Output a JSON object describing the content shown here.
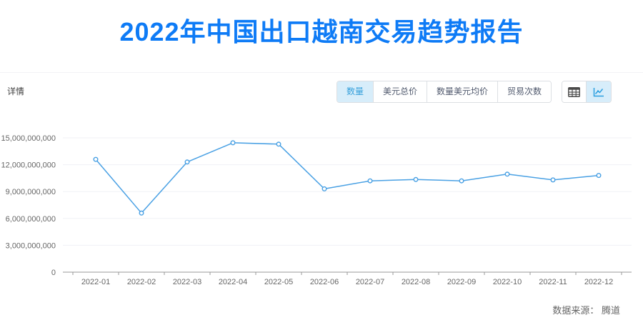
{
  "header": {
    "title": "2022年中国出口越南交易趋势报告"
  },
  "toolbar": {
    "section_label": "详情",
    "tabs": [
      {
        "name": "quantity",
        "label": "数量",
        "active": true
      },
      {
        "name": "usd-total",
        "label": "美元总价",
        "active": false
      },
      {
        "name": "quantity-usd-avg",
        "label": "数量美元均价",
        "active": false
      },
      {
        "name": "trade-count",
        "label": "贸易次数",
        "active": false
      }
    ],
    "view_toggles": [
      {
        "name": "table-view",
        "icon": "table-icon",
        "active": false
      },
      {
        "name": "chart-view",
        "icon": "line-chart-icon",
        "active": true
      }
    ]
  },
  "footer": {
    "source_label": "数据来源： 腾道"
  },
  "colors": {
    "title_blue": "#0e7bf6",
    "line_blue": "#4aa1e4",
    "active_tab_bg": "#d7edfa",
    "active_tab_text": "#36a0db",
    "grid_line": "#f0f1f6",
    "axis_line": "#999999",
    "tick_label": "#666666"
  },
  "chart_data": {
    "type": "line",
    "title": "",
    "xlabel": "",
    "ylabel": "",
    "categories": [
      "2022-01",
      "2022-02",
      "2022-03",
      "2022-04",
      "2022-05",
      "2022-06",
      "2022-07",
      "2022-08",
      "2022-09",
      "2022-10",
      "2022-11",
      "2022-12"
    ],
    "series": [
      {
        "name": "数量",
        "values": [
          12600000000,
          6600000000,
          12300000000,
          14450000000,
          14300000000,
          9300000000,
          10200000000,
          10350000000,
          10200000000,
          10950000000,
          10300000000,
          10800000000
        ]
      }
    ],
    "ylim": [
      0,
      15000000000
    ],
    "ytick_interval": 3000000000,
    "ytick_labels": [
      "0",
      "3,000,000,000",
      "6,000,000,000",
      "9,000,000,000",
      "12,000,000,000",
      "15,000,000,000"
    ],
    "grid": true,
    "legend_position": "none",
    "point_style": "hollow-circle"
  }
}
